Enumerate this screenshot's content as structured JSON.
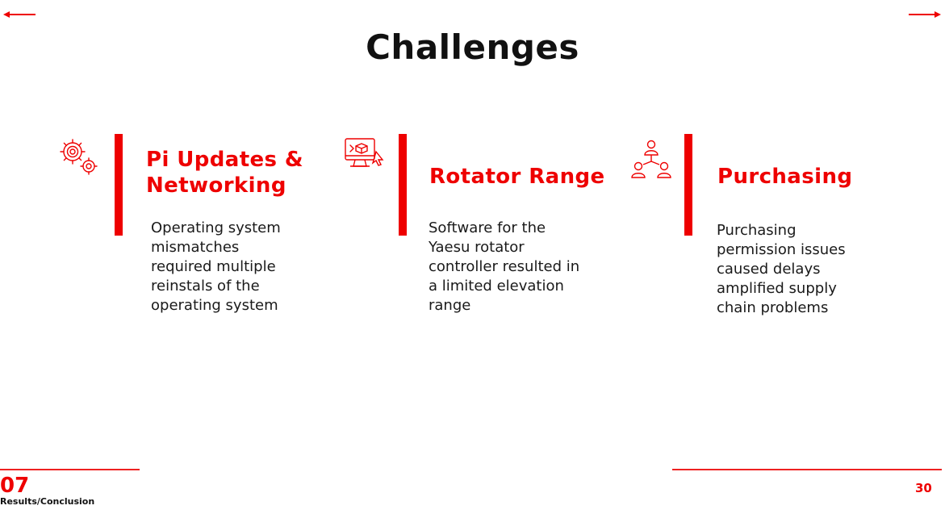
{
  "slide": {
    "title": "Challenges",
    "page_number": "30",
    "accent_color": "#ee0000"
  },
  "navigation": {
    "prev_icon": "arrow-left-icon",
    "next_icon": "arrow-right-icon"
  },
  "cards": [
    {
      "icon": "gears-icon",
      "heading_lines": [
        "Pi Updates &",
        "Networking"
      ],
      "body_lines": [
        "Operating system",
        "mismatches",
        "required multiple",
        "reinstals of the",
        "operating system"
      ]
    },
    {
      "icon": "monitor-code-icon",
      "heading_lines": [
        "Rotator Range"
      ],
      "body_lines": [
        "Software for the",
        "Yaesu rotator",
        "controller resulted in",
        "a limited elevation",
        "range"
      ]
    },
    {
      "icon": "team-network-icon",
      "heading_lines": [
        "Purchasing"
      ],
      "body_lines": [
        "Purchasing",
        "permission issues",
        "caused delays",
        "amplified supply",
        "chain problems"
      ]
    }
  ],
  "footer": {
    "section_number": "07",
    "section_name": "Results/Conclusion"
  }
}
